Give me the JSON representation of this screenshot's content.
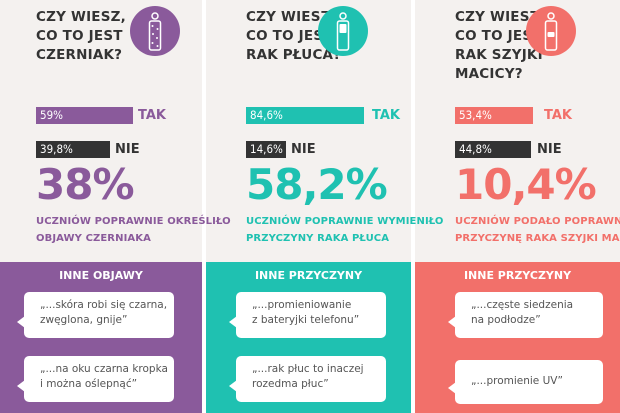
{
  "colors": {
    "purple": "#8a5a9b",
    "teal": "#1fc1b1",
    "coral": "#f2706a",
    "dark": "#333333"
  },
  "panels": [
    {
      "question": [
        "CZY WIESZ,",
        "CO TO JEST",
        "CZERNIAK?"
      ],
      "icon": "person-with-spots-icon",
      "yes_value": "59%",
      "yes_label": "TAK",
      "yes_fraction": 0.59,
      "no_value": "39,8%",
      "no_label": "NIE",
      "no_fraction": 0.398,
      "big_number": "38%",
      "description": [
        "UCZNIÓW POPRAWNIE OKREŚLIŁO",
        "OBJAWY CZERNIAKA"
      ],
      "bottom_title": "INNE OBJAWY",
      "quotes": [
        [
          "„...skóra robi się czarna,",
          "zwęglona, gnije”"
        ],
        [
          "„...na oku czarna kropka",
          "i można oślepnąć”"
        ]
      ]
    },
    {
      "question": [
        "CZY WIESZ,",
        "CO TO JEST",
        "RAK PŁUCA?"
      ],
      "icon": "person-with-lungs-icon",
      "yes_value": "84,6%",
      "yes_label": "TAK",
      "yes_fraction": 0.846,
      "no_value": "14,6%",
      "no_label": "NIE",
      "no_fraction": 0.146,
      "big_number": "58,2%",
      "description": [
        "UCZNIÓW POPRAWNIE WYMIENIŁO",
        "PRZYCZYNY RAKA PŁUCA"
      ],
      "bottom_title": "INNE PRZYCZYNY",
      "quotes": [
        [
          "„...promieniowanie",
          "z bateryjki telefonu”"
        ],
        [
          "„...rak płuc to inaczej",
          "rozedma płuc”"
        ]
      ]
    },
    {
      "question": [
        "CZY WIESZ,",
        "CO TO JEST",
        "RAK SZYJKI",
        "MACICY?"
      ],
      "icon": "person-with-uterus-icon",
      "yes_value": "53,4%",
      "yes_label": "TAK",
      "yes_fraction": 0.534,
      "no_value": "44,8%",
      "no_label": "NIE",
      "no_fraction": 0.448,
      "big_number": "10,4%",
      "description": [
        "UCZNIÓW PODAŁO POPRAWNĄ",
        "PRZYCZYNĘ RAKA SZYJKI MACICY"
      ],
      "bottom_title": "INNE PRZYCZYNY",
      "quotes": [
        [
          "„...częste siedzenia",
          "na podłodze”"
        ],
        [
          "„...promienie UV”"
        ]
      ]
    }
  ]
}
